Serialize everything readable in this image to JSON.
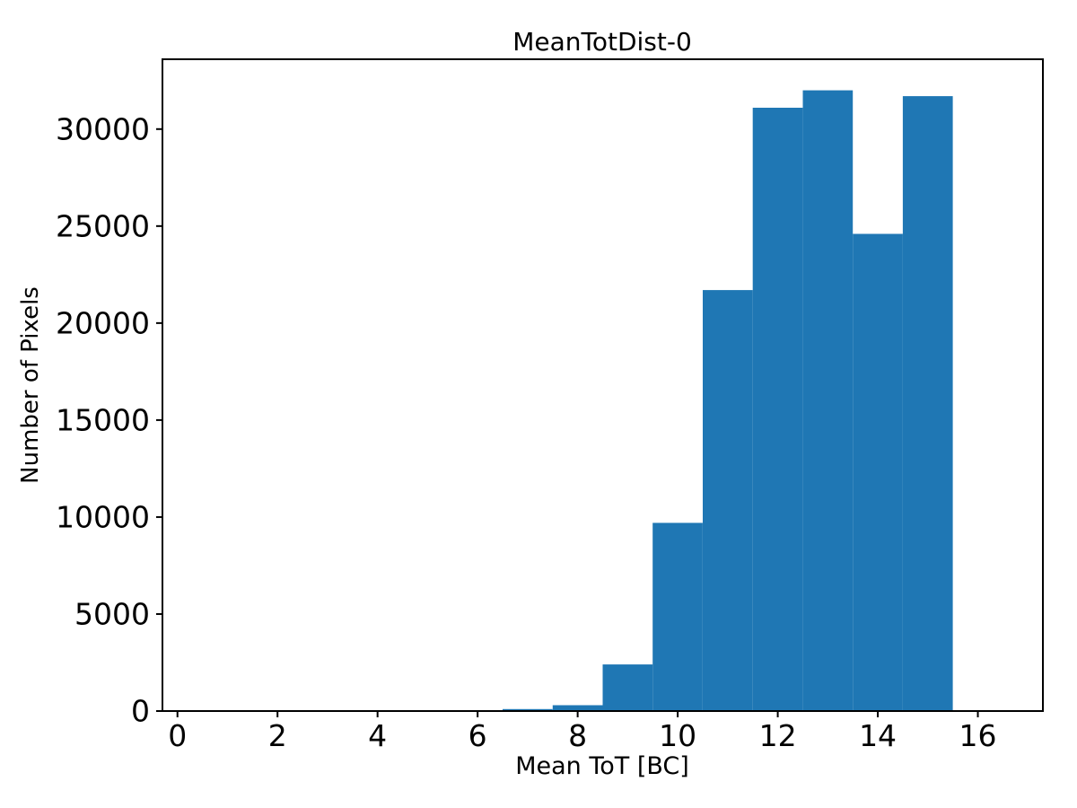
{
  "figure": {
    "background_color": "#ffffff",
    "frame_color": "#000000"
  },
  "chart_data": {
    "type": "bar",
    "subtype": "histogram",
    "title": "MeanTotDist-0",
    "xlabel": "Mean ToT [BC]",
    "ylabel": "Number of Pixels",
    "bar_color": "#1f77b4",
    "grid": false,
    "legend": false,
    "bin_edges": [
      0.5,
      1.5,
      2.5,
      3.5,
      4.5,
      5.5,
      6.5,
      7.5,
      8.5,
      9.5,
      10.5,
      11.5,
      12.5,
      13.5,
      14.5,
      15.5,
      16.5
    ],
    "counts": [
      0,
      0,
      0,
      0,
      0,
      0,
      100,
      300,
      2400,
      9700,
      21700,
      31100,
      32000,
      24600,
      31700,
      0
    ],
    "xlim": [
      -0.3,
      17.3
    ],
    "ylim": [
      0,
      33600
    ],
    "xticks": [
      0,
      2,
      4,
      6,
      8,
      10,
      12,
      14,
      16
    ],
    "yticks": [
      0,
      5000,
      10000,
      15000,
      20000,
      25000,
      30000
    ]
  }
}
